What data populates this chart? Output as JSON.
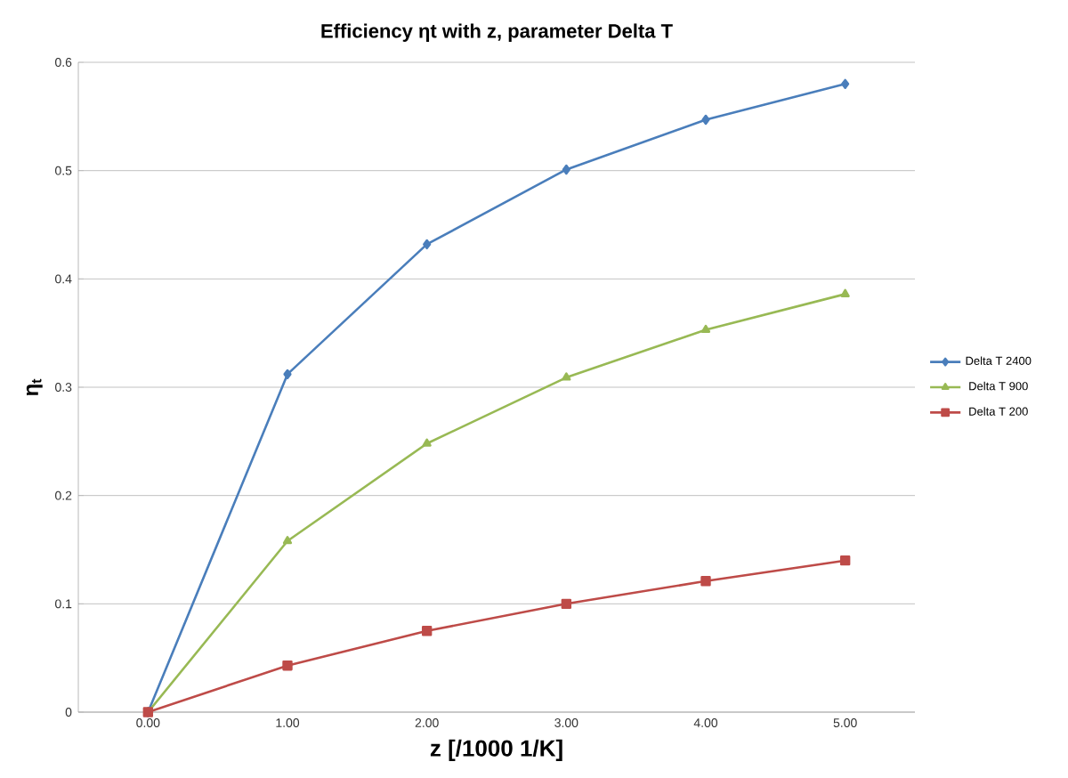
{
  "chart_data": {
    "type": "line",
    "title": "Efficiency ηt  with z, parameter Delta T",
    "xlabel": "z [/1000 1/K]",
    "ylabel": "η$_{t}$",
    "categories": [
      "0.00",
      "1.00",
      "2.00",
      "3.00",
      "4.00",
      "5.00"
    ],
    "series": [
      {
        "name": "Delta T 2400",
        "color": "#4a7ebb",
        "marker": "diamond",
        "values": [
          0,
          0.312,
          0.432,
          0.501,
          0.547,
          0.58
        ]
      },
      {
        "name": "Delta T  900",
        "color": "#98b954",
        "marker": "triangle",
        "values": [
          0,
          0.158,
          0.248,
          0.309,
          0.353,
          0.386
        ]
      },
      {
        "name": "Delta T  200",
        "color": "#be4b48",
        "marker": "square",
        "values": [
          0,
          0.043,
          0.075,
          0.1,
          0.121,
          0.14
        ]
      }
    ],
    "ylim": [
      0,
      0.6
    ],
    "yticks": [
      {
        "value": 0,
        "label": "0"
      },
      0.1,
      0.2,
      0.3,
      0.4,
      0.5,
      0.6
    ],
    "grid": "y",
    "legend": "right",
    "line_style": "solid"
  }
}
